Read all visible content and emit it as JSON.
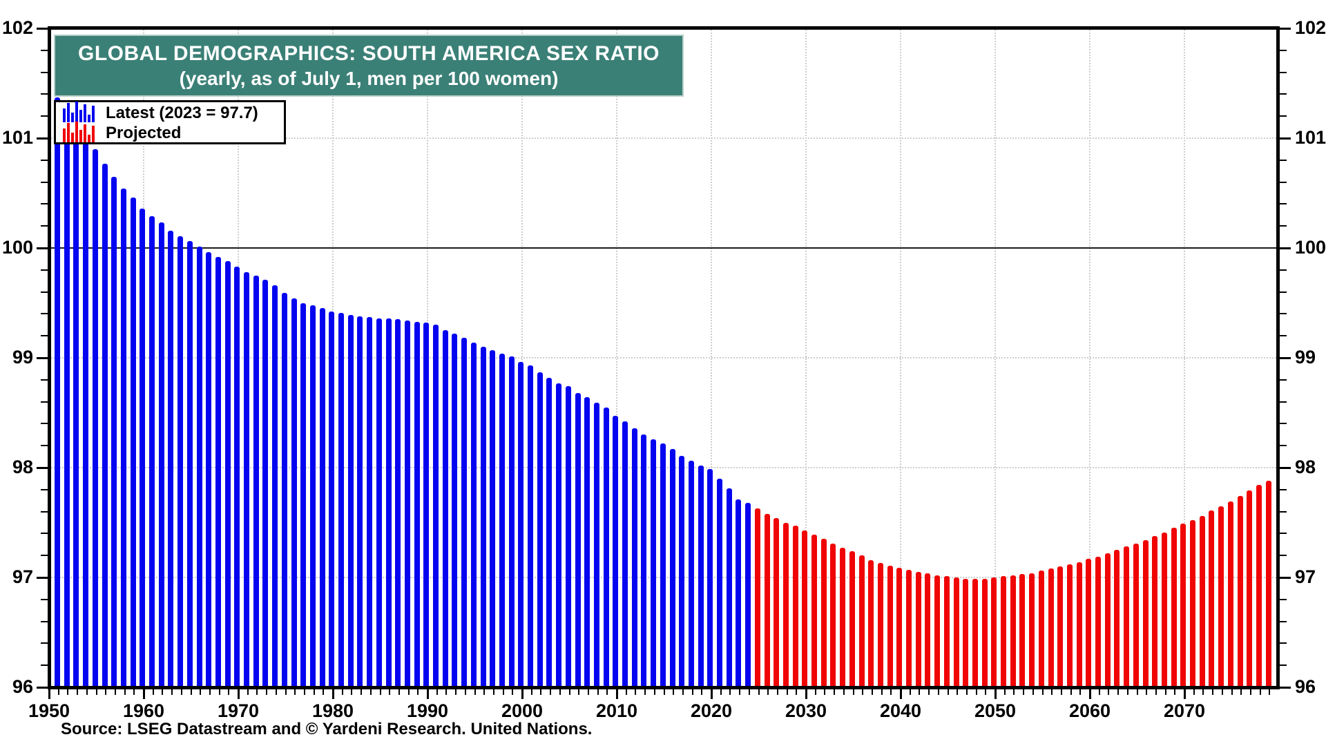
{
  "title": {
    "line1": "GLOBAL DEMOGRAPHICS: SOUTH AMERICA SEX RATIO",
    "line2": "(yearly, as of July 1, men per 100 women)",
    "background_color": "#3B8077",
    "text_color": "#FFFFFF"
  },
  "legend": {
    "latest_label": "Latest (2023 = 97.7)",
    "projected_label": "Projected"
  },
  "source": "Source: LSEG Datastream and © Yardeni Research. United Nations.",
  "axes": {
    "y_min": 96,
    "y_max": 102,
    "y_major_ticks": [
      96,
      97,
      98,
      99,
      100,
      101,
      102
    ],
    "y_minor_step": 0.2,
    "y_tick_labels": [
      "96",
      "97",
      "98",
      "99",
      "100",
      "101",
      "102"
    ],
    "y_gridlines_dotted": [
      97,
      98,
      99,
      101
    ],
    "y_gridline_solid": 100,
    "x_start_year": 1950,
    "x_end_year": 2079,
    "x_major_ticks": [
      1950,
      1960,
      1970,
      1980,
      1990,
      2000,
      2010,
      2020,
      2030,
      2040,
      2050,
      2060,
      2070
    ],
    "x_tick_labels": [
      "1950",
      "1960",
      "1970",
      "1980",
      "1990",
      "2000",
      "2010",
      "2020",
      "2030",
      "2040",
      "2050",
      "2060",
      "2070"
    ],
    "x_gridline_years": [
      1960,
      1970,
      1980,
      1990,
      2000,
      2010,
      2020,
      2030,
      2040,
      2050,
      2060,
      2070
    ],
    "grid_color": "#cdcdcd",
    "labels_on_both_sides": true
  },
  "chart_data": {
    "type": "bar",
    "title": "GLOBAL DEMOGRAPHICS: SOUTH AMERICA SEX RATIO",
    "subtitle": "(yearly, as of July 1, men per 100 women)",
    "ylabel": "men per 100 women",
    "ylim": [
      96,
      102
    ],
    "xlim": [
      1950,
      2079
    ],
    "grid": "dotted horizontal at 97/98/99/101, solid at 100, dotted vertical each decade",
    "legend_position": "top-left",
    "series": [
      {
        "name": "Latest (2023 = 97.7)",
        "color": "#0404F0",
        "start_year": 1950,
        "end_year": 2023,
        "values": [
          101.37,
          101.3,
          101.2,
          101.05,
          100.9,
          100.77,
          100.65,
          100.54,
          100.46,
          100.36,
          100.29,
          100.23,
          100.16,
          100.11,
          100.06,
          100.01,
          99.96,
          99.92,
          99.88,
          99.83,
          99.78,
          99.75,
          99.71,
          99.66,
          99.59,
          99.54,
          99.5,
          99.48,
          99.45,
          99.42,
          99.41,
          99.39,
          99.38,
          99.37,
          99.36,
          99.36,
          99.35,
          99.34,
          99.33,
          99.32,
          99.3,
          99.25,
          99.22,
          99.18,
          99.14,
          99.1,
          99.07,
          99.04,
          99.01,
          98.96,
          98.93,
          98.87,
          98.82,
          98.77,
          98.74,
          98.68,
          98.64,
          98.59,
          98.55,
          98.47,
          98.42,
          98.36,
          98.3,
          98.26,
          98.22,
          98.17,
          98.11,
          98.06,
          98.02,
          97.99,
          97.9,
          97.81,
          97.71,
          97.68
        ]
      },
      {
        "name": "Projected",
        "color": "#F00404",
        "start_year": 2024,
        "end_year": 2078,
        "values": [
          97.63,
          97.58,
          97.54,
          97.5,
          97.47,
          97.43,
          97.39,
          97.35,
          97.31,
          97.27,
          97.24,
          97.2,
          97.16,
          97.13,
          97.11,
          97.09,
          97.07,
          97.05,
          97.04,
          97.02,
          97.01,
          97.0,
          96.99,
          96.99,
          96.99,
          97.0,
          97.01,
          97.02,
          97.03,
          97.04,
          97.06,
          97.08,
          97.1,
          97.12,
          97.14,
          97.17,
          97.19,
          97.22,
          97.25,
          97.28,
          97.31,
          97.34,
          97.38,
          97.41,
          97.45,
          97.49,
          97.52,
          97.56,
          97.61,
          97.65,
          97.69,
          97.74,
          97.79,
          97.84,
          97.88
        ]
      }
    ]
  }
}
